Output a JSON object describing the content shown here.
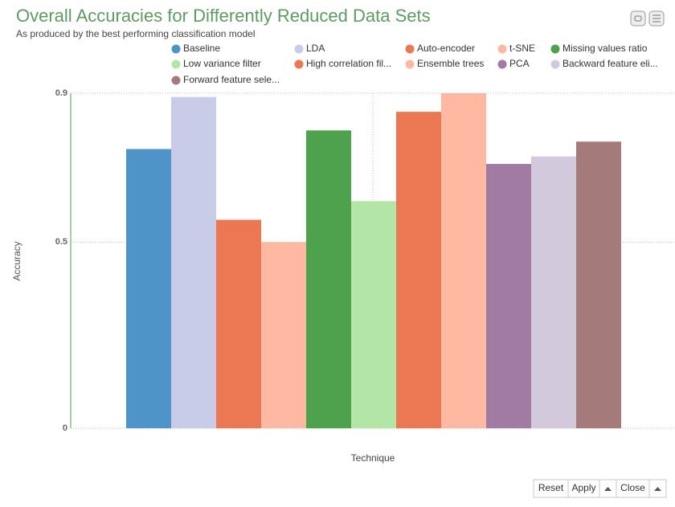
{
  "chart_data": {
    "type": "bar",
    "title": "Overall Accuracies for Differently Reduced Data Sets",
    "subtitle": "As produced by the best performing classification model",
    "x_label": "Technique",
    "y_label": "Accuracy",
    "categories": [
      "Baseline",
      "LDA",
      "Auto-encoder",
      "t-SNE",
      "Missing values ratio",
      "Low variance filter",
      "High correlation fil...",
      "Ensemble trees",
      "PCA",
      "Backward feature eli...",
      "Forward feature sele..."
    ],
    "values": [
      0.75,
      0.89,
      0.56,
      0.5,
      0.8,
      0.61,
      0.85,
      0.9,
      0.71,
      0.73,
      0.77
    ],
    "colors": [
      "#4f94c8",
      "#c8cce8",
      "#ec7753",
      "#ffb9a2",
      "#4ea24e",
      "#b3e6a6",
      "#ec7753",
      "#ffb9a2",
      "#a27ba2",
      "#d2c9dd",
      "#a47b7a"
    ],
    "ylim": [
      0,
      0.9
    ],
    "yticks": [
      0,
      0.5,
      0.9
    ],
    "grid": true
  },
  "controls": {
    "reset": "Reset",
    "apply": "Apply",
    "close": "Close"
  }
}
